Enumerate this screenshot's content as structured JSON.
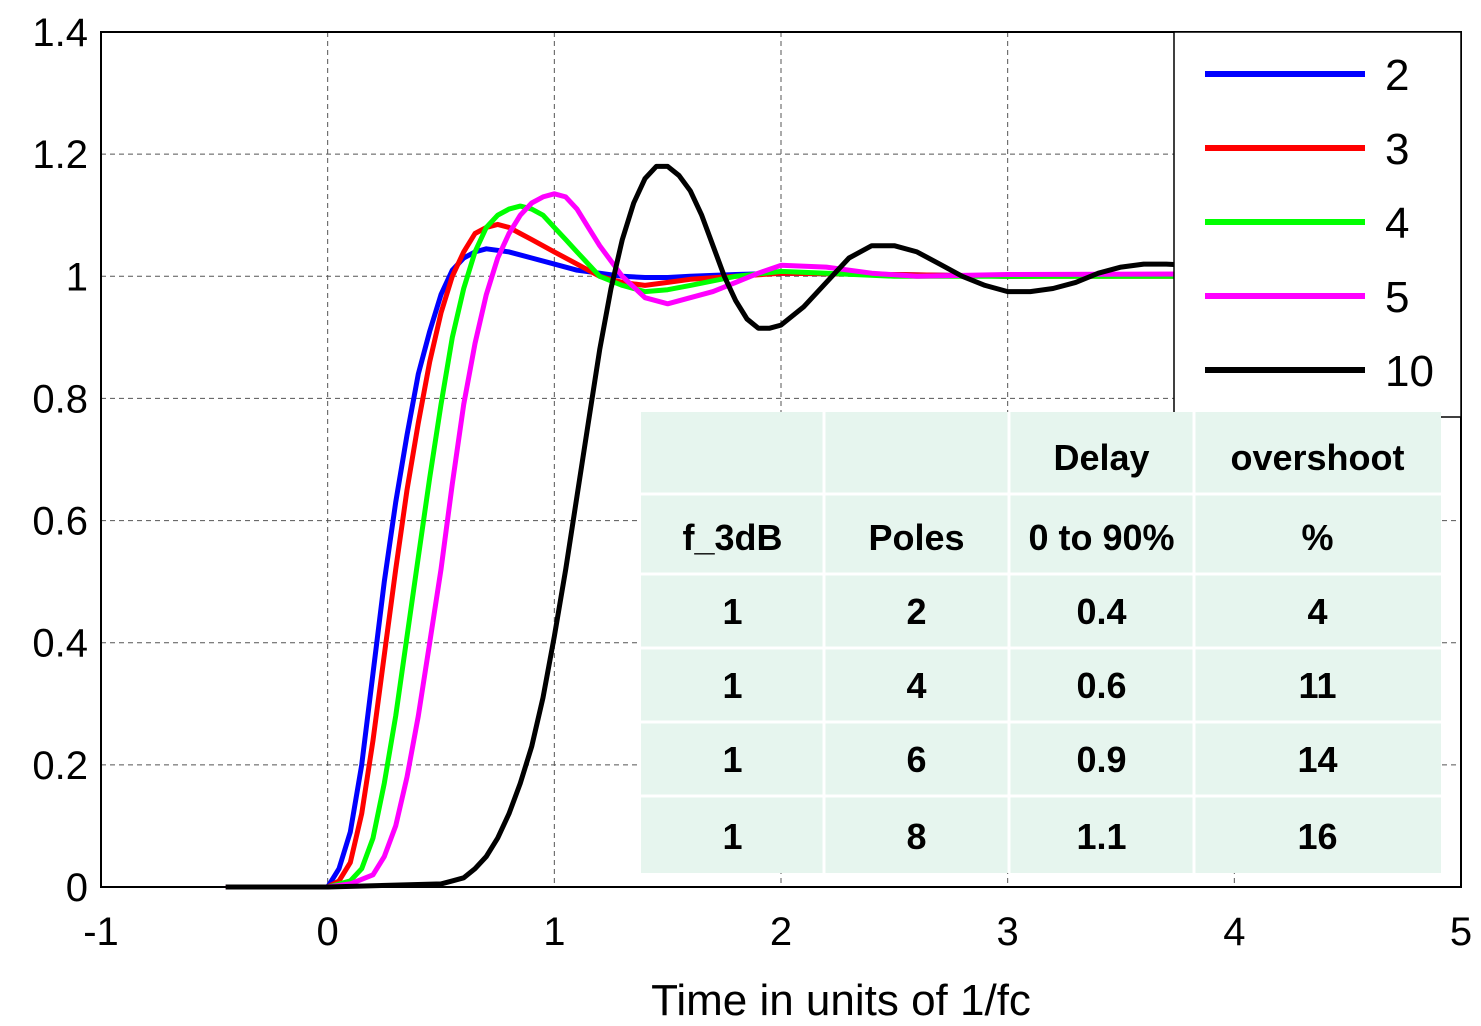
{
  "chart_data": {
    "type": "line",
    "title": "",
    "xlabel": "Time in units of 1/fc",
    "ylabel": "",
    "xlim": [
      -1,
      5
    ],
    "ylim": [
      0,
      1.4
    ],
    "xticks": [
      "-1",
      "0",
      "1",
      "2",
      "3",
      "4",
      "5"
    ],
    "yticks": [
      "0",
      "0.2",
      "0.4",
      "0.6",
      "0.8",
      "1",
      "1.2",
      "1.4"
    ],
    "grid": true,
    "legend_position": "top-right",
    "series": [
      {
        "name": "2",
        "color": "#0000ff",
        "x": [
          -0.45,
          0.0,
          0.05,
          0.1,
          0.15,
          0.2,
          0.25,
          0.3,
          0.35,
          0.4,
          0.45,
          0.5,
          0.55,
          0.6,
          0.65,
          0.7,
          0.8,
          0.9,
          1.0,
          1.1,
          1.2,
          1.3,
          1.4,
          1.5,
          1.6,
          1.8,
          2.0,
          2.5,
          3.0,
          4.0,
          5.0
        ],
        "y": [
          0.0,
          0.0,
          0.03,
          0.09,
          0.2,
          0.35,
          0.5,
          0.63,
          0.74,
          0.84,
          0.91,
          0.97,
          1.01,
          1.03,
          1.04,
          1.045,
          1.04,
          1.03,
          1.02,
          1.01,
          1.005,
          1.0,
          0.998,
          0.998,
          1.0,
          1.003,
          1.005,
          1.003,
          1.0,
          1.003,
          1.005
        ]
      },
      {
        "name": "3",
        "color": "#ff0000",
        "x": [
          -0.45,
          0.0,
          0.05,
          0.1,
          0.15,
          0.2,
          0.25,
          0.3,
          0.35,
          0.4,
          0.45,
          0.5,
          0.55,
          0.6,
          0.65,
          0.7,
          0.75,
          0.8,
          0.85,
          0.9,
          1.0,
          1.1,
          1.2,
          1.3,
          1.4,
          1.5,
          1.6,
          1.8,
          2.0,
          2.5,
          3.0,
          5.0
        ],
        "y": [
          0.0,
          0.0,
          0.01,
          0.04,
          0.12,
          0.24,
          0.38,
          0.52,
          0.65,
          0.76,
          0.86,
          0.94,
          1.0,
          1.04,
          1.07,
          1.08,
          1.085,
          1.08,
          1.07,
          1.06,
          1.04,
          1.02,
          1.0,
          0.99,
          0.985,
          0.99,
          0.995,
          1.0,
          1.005,
          1.003,
          1.0,
          1.0
        ]
      },
      {
        "name": "4",
        "color": "#00ff00",
        "x": [
          -0.45,
          0.0,
          0.1,
          0.15,
          0.2,
          0.25,
          0.3,
          0.35,
          0.4,
          0.45,
          0.5,
          0.55,
          0.6,
          0.65,
          0.7,
          0.75,
          0.8,
          0.85,
          0.9,
          0.95,
          1.0,
          1.05,
          1.1,
          1.2,
          1.3,
          1.4,
          1.5,
          1.6,
          1.8,
          2.0,
          2.2,
          2.5,
          3.0,
          5.0
        ],
        "y": [
          0.0,
          0.0,
          0.01,
          0.03,
          0.08,
          0.17,
          0.28,
          0.41,
          0.54,
          0.67,
          0.79,
          0.9,
          0.98,
          1.04,
          1.08,
          1.1,
          1.11,
          1.115,
          1.11,
          1.1,
          1.08,
          1.06,
          1.04,
          1.0,
          0.985,
          0.975,
          0.978,
          0.985,
          1.0,
          1.008,
          1.005,
          1.0,
          1.0,
          1.0
        ]
      },
      {
        "name": "5",
        "color": "#ff00ff",
        "x": [
          -0.45,
          0.0,
          0.1,
          0.2,
          0.25,
          0.3,
          0.35,
          0.4,
          0.45,
          0.5,
          0.55,
          0.6,
          0.65,
          0.7,
          0.75,
          0.8,
          0.85,
          0.9,
          0.95,
          1.0,
          1.05,
          1.1,
          1.15,
          1.2,
          1.3,
          1.4,
          1.5,
          1.6,
          1.7,
          1.8,
          1.9,
          2.0,
          2.2,
          2.4,
          2.6,
          3.0,
          5.0
        ],
        "y": [
          0.0,
          0.0,
          0.005,
          0.02,
          0.05,
          0.1,
          0.18,
          0.28,
          0.4,
          0.52,
          0.66,
          0.79,
          0.89,
          0.97,
          1.03,
          1.07,
          1.1,
          1.12,
          1.13,
          1.135,
          1.13,
          1.11,
          1.08,
          1.05,
          1.0,
          0.965,
          0.955,
          0.965,
          0.975,
          0.99,
          1.005,
          1.018,
          1.015,
          1.005,
          1.0,
          1.003,
          1.005
        ]
      },
      {
        "name": "10",
        "color": "#000000",
        "x": [
          -0.45,
          0.0,
          0.5,
          0.55,
          0.6,
          0.65,
          0.7,
          0.75,
          0.8,
          0.85,
          0.9,
          0.95,
          1.0,
          1.05,
          1.1,
          1.15,
          1.2,
          1.25,
          1.3,
          1.35,
          1.4,
          1.45,
          1.5,
          1.55,
          1.6,
          1.65,
          1.7,
          1.75,
          1.8,
          1.85,
          1.9,
          1.95,
          2.0,
          2.1,
          2.2,
          2.3,
          2.4,
          2.5,
          2.6,
          2.7,
          2.8,
          2.9,
          3.0,
          3.1,
          3.2,
          3.3,
          3.4,
          3.5,
          3.6,
          3.7,
          3.8,
          5.0
        ],
        "y": [
          0.0,
          0.0,
          0.005,
          0.01,
          0.015,
          0.03,
          0.05,
          0.08,
          0.12,
          0.17,
          0.23,
          0.31,
          0.41,
          0.52,
          0.64,
          0.76,
          0.88,
          0.98,
          1.06,
          1.12,
          1.16,
          1.18,
          1.18,
          1.165,
          1.14,
          1.1,
          1.05,
          1.0,
          0.96,
          0.93,
          0.915,
          0.915,
          0.92,
          0.95,
          0.99,
          1.03,
          1.05,
          1.05,
          1.04,
          1.02,
          1.0,
          0.985,
          0.975,
          0.975,
          0.98,
          0.99,
          1.005,
          1.015,
          1.02,
          1.02,
          1.018,
          1.01
        ]
      }
    ],
    "table": {
      "header_rows": [
        [
          "",
          "",
          "Delay",
          "overshoot"
        ],
        [
          "f_3dB",
          "Poles",
          "0 to 90%",
          "%"
        ]
      ],
      "rows": [
        [
          "1",
          "2",
          "0.4",
          "4"
        ],
        [
          "1",
          "4",
          "0.6",
          "11"
        ],
        [
          "1",
          "6",
          "0.9",
          "14"
        ],
        [
          "1",
          "8",
          "1.1",
          "16"
        ]
      ]
    }
  }
}
